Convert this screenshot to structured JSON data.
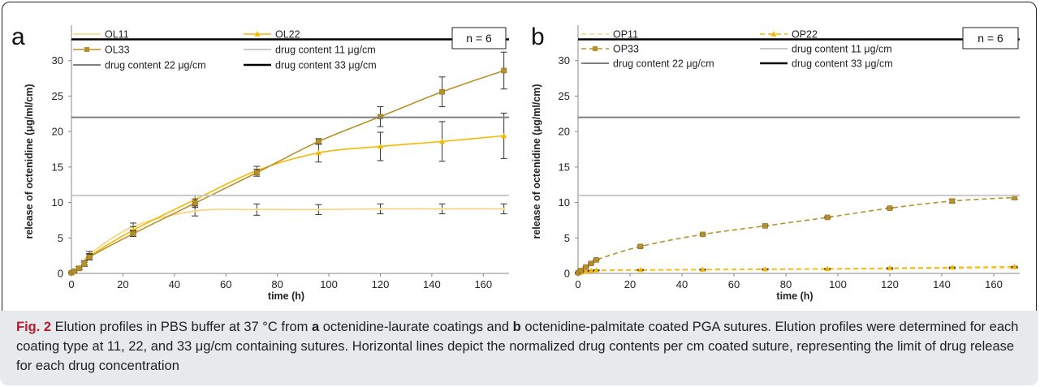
{
  "caption": {
    "fig_label": "Fig. 2",
    "t1": " Elution profiles in PBS buffer at 37 °C from ",
    "b1": "a",
    "t2": " octenidine-laurate coatings and ",
    "b2": "b",
    "t3": " octenidine-palmitate coated PGA sutures. Elution profiles were determined for each coating type at 11, 22, and 33 μg/cm containing sutures. Horizontal lines depict the normalized drug contents per cm coated suture, representing the limit of drug release for each drug concentration"
  },
  "chart_data": [
    {
      "panel": "a",
      "type": "line",
      "xlabel": "time (h)",
      "ylabel": "release of octenidine (μg/ml/cm)",
      "xlim": [
        0,
        170
      ],
      "ylim": [
        0,
        35
      ],
      "xticks": [
        0,
        20,
        40,
        60,
        80,
        100,
        120,
        140,
        160
      ],
      "yticks": [
        0,
        5,
        10,
        15,
        20,
        25,
        30
      ],
      "annotation": "n = 6",
      "legend_position": "top-left",
      "series": [
        {
          "name": "OL11",
          "color": "#f7d27a",
          "dash": "solid",
          "marker": "none",
          "x": [
            0,
            1,
            3,
            5,
            7,
            24,
            48,
            72,
            96,
            120,
            144,
            168
          ],
          "y": [
            0.1,
            0.3,
            0.8,
            1.5,
            2.7,
            6.6,
            8.8,
            9.0,
            9.0,
            9.1,
            9.1,
            9.1
          ],
          "err": [
            0.1,
            0.1,
            0.2,
            0.3,
            0.4,
            0.5,
            0.7,
            0.8,
            0.7,
            0.7,
            0.7,
            0.7
          ]
        },
        {
          "name": "OL22",
          "color": "#f5b700",
          "dash": "solid",
          "marker": "triangle",
          "x": [
            0,
            1,
            3,
            5,
            7,
            24,
            48,
            72,
            96,
            120,
            144,
            168
          ],
          "y": [
            0.1,
            0.3,
            0.8,
            1.3,
            2.4,
            6.1,
            10.4,
            14.5,
            17.0,
            17.9,
            18.6,
            19.4
          ],
          "err": [
            0.1,
            0.1,
            0.2,
            0.3,
            0.4,
            0.5,
            0.6,
            0.6,
            1.3,
            2.0,
            2.8,
            3.2
          ]
        },
        {
          "name": "OL33",
          "color": "#b8902a",
          "dash": "solid",
          "marker": "square",
          "x": [
            0,
            1,
            3,
            5,
            7,
            24,
            48,
            72,
            96,
            120,
            144,
            168
          ],
          "y": [
            0.1,
            0.3,
            0.7,
            1.3,
            2.3,
            5.6,
            9.9,
            14.2,
            18.6,
            22.1,
            25.6,
            28.6
          ],
          "err": [
            0.1,
            0.1,
            0.2,
            0.3,
            0.4,
            0.4,
            0.6,
            0.5,
            0.4,
            1.4,
            2.1,
            2.6
          ]
        },
        {
          "name": "drug content 11 μg/cm",
          "color": "#c8c8c8",
          "dash": "solid",
          "marker": "none",
          "hline": 11
        },
        {
          "name": "drug content 22 μg/cm",
          "color": "#7f7f7f",
          "dash": "solid",
          "marker": "none",
          "hline": 22
        },
        {
          "name": "drug content 33 μg/cm",
          "color": "#000000",
          "dash": "solid",
          "marker": "none",
          "hline": 33
        }
      ]
    },
    {
      "panel": "b",
      "type": "line",
      "xlabel": "time (h)",
      "ylabel": "release of octenidine (μg/ml/cm)",
      "xlim": [
        0,
        170
      ],
      "ylim": [
        0,
        35
      ],
      "xticks": [
        0,
        20,
        40,
        60,
        80,
        100,
        120,
        140,
        160
      ],
      "yticks": [
        0,
        5,
        10,
        15,
        20,
        25,
        30
      ],
      "annotation": "n = 6",
      "legend_position": "top-left",
      "series": [
        {
          "name": "OP11",
          "color": "#f7d27a",
          "dash": "dashed",
          "marker": "none",
          "x": [
            0,
            1,
            3,
            5,
            7,
            24,
            48,
            72,
            96,
            120,
            144,
            168
          ],
          "y": [
            0.05,
            0.15,
            0.3,
            0.35,
            0.4,
            0.45,
            0.5,
            0.55,
            0.6,
            0.65,
            0.7,
            0.75
          ],
          "err": [
            0.02,
            0.05,
            0.05,
            0.05,
            0.05,
            0.05,
            0.05,
            0.05,
            0.05,
            0.05,
            0.05,
            0.05
          ]
        },
        {
          "name": "OP22",
          "color": "#f5b700",
          "dash": "dashed",
          "marker": "triangle",
          "x": [
            0,
            1,
            3,
            5,
            7,
            24,
            48,
            72,
            96,
            120,
            144,
            168
          ],
          "y": [
            0.05,
            0.15,
            0.3,
            0.4,
            0.45,
            0.5,
            0.55,
            0.6,
            0.65,
            0.75,
            0.85,
            0.95
          ],
          "err": [
            0.02,
            0.05,
            0.05,
            0.05,
            0.05,
            0.05,
            0.05,
            0.05,
            0.05,
            0.05,
            0.05,
            0.05
          ]
        },
        {
          "name": "OP33",
          "color": "#b8902a",
          "dash": "dashed",
          "marker": "square",
          "x": [
            0,
            1,
            3,
            5,
            7,
            24,
            48,
            72,
            96,
            120,
            144,
            168
          ],
          "y": [
            0.1,
            0.4,
            0.9,
            1.4,
            1.9,
            3.8,
            5.5,
            6.7,
            7.9,
            9.2,
            10.2,
            10.7
          ],
          "err": [
            0.05,
            0.1,
            0.1,
            0.1,
            0.1,
            0.15,
            0.1,
            0.1,
            0.1,
            0.1,
            0.25,
            0.25
          ]
        },
        {
          "name": "drug content 11 μg/cm",
          "color": "#c8c8c8",
          "dash": "solid",
          "marker": "none",
          "hline": 11
        },
        {
          "name": "drug content 22 μg/cm",
          "color": "#7f7f7f",
          "dash": "solid",
          "marker": "none",
          "hline": 22
        },
        {
          "name": "drug content 33 μg/cm",
          "color": "#000000",
          "dash": "solid",
          "marker": "none",
          "hline": 33
        }
      ]
    }
  ]
}
